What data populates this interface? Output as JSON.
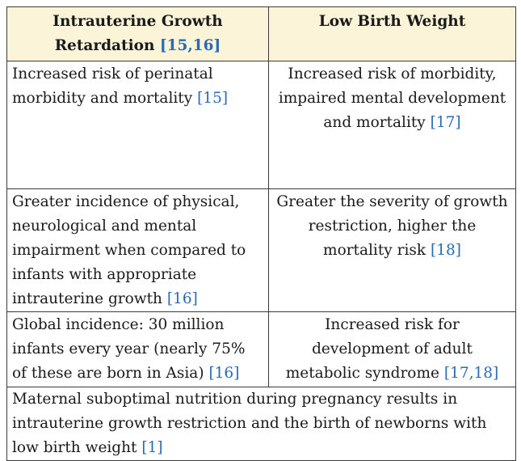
{
  "table": {
    "headers": [
      {
        "text": "Intrauterine Growth Retardation",
        "ref": "[15,16]"
      },
      {
        "text": "Low Birth Weight",
        "ref": ""
      }
    ],
    "rows": [
      [
        {
          "text": "Increased risk of perinatal morbidity and mortality",
          "ref": "[15]"
        },
        {
          "text": "Increased risk of morbidity, impaired mental development and mortality",
          "ref": "[17]"
        }
      ],
      [
        {
          "text": "Greater incidence of physical, neurological and mental impairment when compared to infants with appropriate intrauterine growth",
          "ref": "[16]"
        },
        {
          "text": "Greater the severity of growth restriction, higher the mortality risk",
          "ref": "[18]"
        }
      ],
      [
        {
          "text": "Global incidence: 30 million infants every year (nearly 75% of these are born in Asia)",
          "ref": "[16]"
        },
        {
          "text": "Increased risk for development of adult metabolic syndrome",
          "ref": "[17,18]"
        }
      ]
    ],
    "footer": {
      "text": "Maternal suboptimal nutrition during pregnancy results in intrauterine growth restriction and the birth of newborns with low birth weight",
      "ref": "[1]"
    }
  }
}
